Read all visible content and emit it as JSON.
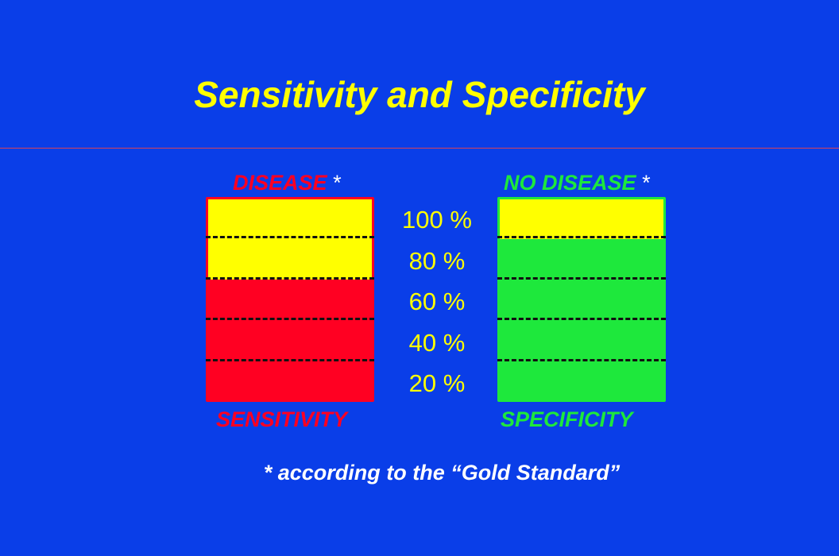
{
  "title": "Sensitivity and Specificity",
  "colors": {
    "background": "#0a3ee8",
    "title": "#ffff00",
    "disease": "#ff0022",
    "no_disease": "#1ee83c",
    "highlight": "#ffff00"
  },
  "left": {
    "header": "DISEASE",
    "star": "*",
    "footer": "SENSITIVITY",
    "highlight_fraction": 0.4
  },
  "right": {
    "header": "NO  DISEASE",
    "star": "*",
    "footer": "SPECIFICITY",
    "highlight_fraction": 0.2
  },
  "scale": [
    "100 %",
    "80 %",
    "60 %",
    "40 %",
    "20 %"
  ],
  "note": "* according to the “Gold  Standard”"
}
